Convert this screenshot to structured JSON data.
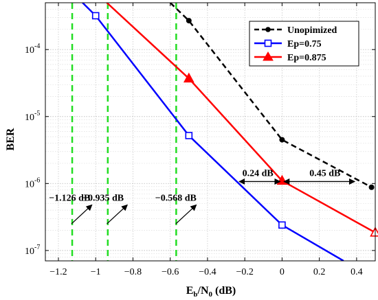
{
  "chart_data": {
    "type": "line",
    "title": "",
    "xlabel": "E_b/N_0 (dB)",
    "xlabel_parts": {
      "main": "E",
      "sub1": "b",
      "slash": "/N",
      "sub2": "0",
      "unit": " (dB)"
    },
    "ylabel": "BER",
    "xlim": [
      -1.27,
      0.5
    ],
    "ylim": [
      7e-08,
      0.0005
    ],
    "yscale": "log",
    "grid": true,
    "legend_position": "top-right",
    "x_ticks": [
      -1.2,
      -1,
      -0.8,
      -0.6,
      -0.4,
      -0.2,
      0,
      0.2,
      0.4
    ],
    "x_tick_labels": [
      "−1.2",
      "−1",
      "−0.8",
      "−0.6",
      "−0.4",
      "−0.2",
      "0",
      "0.2",
      "0.4"
    ],
    "y_ticks": [
      {
        "value": 1e-07,
        "base": "10",
        "exp": "-7"
      },
      {
        "value": 1e-06,
        "base": "10",
        "exp": "-6"
      },
      {
        "value": 1e-05,
        "base": "10",
        "exp": "-5"
      },
      {
        "value": 0.0001,
        "base": "10",
        "exp": "-4"
      }
    ],
    "series": [
      {
        "name": "Unopimized",
        "color": "#000000",
        "dash": true,
        "marker": "circle",
        "line_x": [
          -0.6,
          -0.5,
          0,
          0.48
        ],
        "line_y": [
          0.0005,
          0.00027,
          4.5e-06,
          8.8e-07
        ],
        "markers_x": [
          -0.5,
          0,
          0.48
        ],
        "markers_y": [
          0.00027,
          4.5e-06,
          8.8e-07
        ]
      },
      {
        "name": "Ep=0.75",
        "color": "#0000ff",
        "dash": false,
        "marker": "square",
        "line_x": [
          -1.07,
          -1,
          -0.5,
          0,
          0.33
        ],
        "line_y": [
          0.0005,
          0.00032,
          5.2e-06,
          2.4e-07,
          7e-08
        ],
        "markers_x": [
          -1,
          -0.5,
          0
        ],
        "markers_y": [
          0.00032,
          5.2e-06,
          2.4e-07
        ]
      },
      {
        "name": "Ep=0.875",
        "color": "#ff0000",
        "dash": false,
        "marker": "triangle",
        "line_x": [
          -0.94,
          -0.5,
          0,
          0.5
        ],
        "line_y": [
          0.0005,
          3.7e-05,
          1.1e-06,
          1.85e-07
        ],
        "markers_x": [
          -0.5,
          0,
          0.5
        ],
        "markers_y": [
          3.7e-05,
          1.1e-06,
          1.85e-07
        ]
      }
    ],
    "vlines": {
      "color": "#22dd22",
      "x": [
        -1.126,
        -0.935,
        -0.568
      ]
    },
    "annotations": [
      {
        "text": "−1.126 dB",
        "x": -1.14,
        "y": 6.2e-07
      },
      {
        "text": "−0.935 dB",
        "x": -0.96,
        "y": 6.2e-07
      },
      {
        "text": "−0.568 dB",
        "x": -0.57,
        "y": 6.2e-07
      },
      {
        "text": "0.24 dB",
        "x": -0.13,
        "y": 1.45e-06
      },
      {
        "text": "0.45 dB",
        "x": 0.23,
        "y": 1.45e-06
      }
    ],
    "arrows_diagonal": [
      {
        "from_x": -1.13,
        "from_y": 2.5e-07,
        "to_x": -1.02,
        "to_y": 4.8e-07
      },
      {
        "from_x": -0.94,
        "from_y": 2.5e-07,
        "to_x": -0.83,
        "to_y": 4.8e-07
      },
      {
        "from_x": -0.57,
        "from_y": 2.5e-07,
        "to_x": -0.46,
        "to_y": 4.8e-07
      }
    ],
    "arrows_double": [
      {
        "x1": -0.23,
        "x2": -0.01,
        "y": 1.07e-06
      },
      {
        "x1": 0.01,
        "x2": 0.39,
        "y": 1.07e-06
      }
    ]
  }
}
